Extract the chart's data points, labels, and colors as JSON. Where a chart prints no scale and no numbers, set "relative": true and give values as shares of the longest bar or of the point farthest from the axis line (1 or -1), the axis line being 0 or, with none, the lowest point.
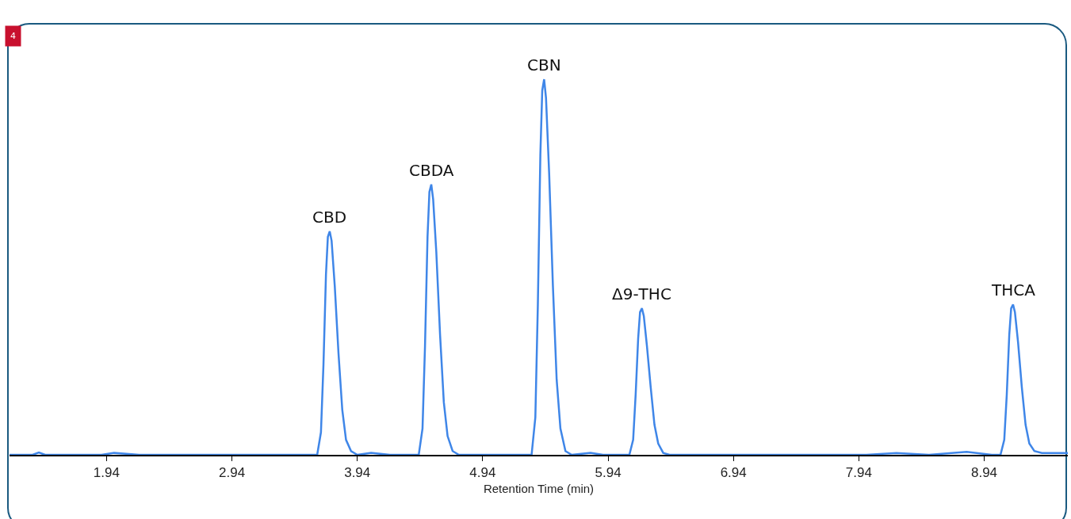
{
  "chart_data": {
    "type": "line",
    "xlabel": "Retention Time (min)",
    "relative": true,
    "xlim": [
      1.166,
      9.607
    ],
    "xticks": [
      1.94,
      2.94,
      3.94,
      4.94,
      5.94,
      6.94,
      7.94,
      8.94
    ],
    "x": [
      1.166,
      1.35,
      1.4,
      1.45,
      1.7,
      1.9,
      2.0,
      2.2,
      2.3,
      3.62,
      3.65,
      3.67,
      3.69,
      3.705,
      3.72,
      3.735,
      3.76,
      3.79,
      3.82,
      3.85,
      3.89,
      3.94,
      4.05,
      4.2,
      4.43,
      4.46,
      4.48,
      4.5,
      4.515,
      4.53,
      4.545,
      4.57,
      4.6,
      4.63,
      4.66,
      4.7,
      4.75,
      5.33,
      5.36,
      5.38,
      5.4,
      5.415,
      5.43,
      5.445,
      5.47,
      5.5,
      5.53,
      5.56,
      5.6,
      5.65,
      5.8,
      5.9,
      6.11,
      6.14,
      6.16,
      6.18,
      6.195,
      6.21,
      6.225,
      6.25,
      6.28,
      6.31,
      6.34,
      6.38,
      6.43,
      8.0,
      8.24,
      8.5,
      8.8,
      9.0,
      9.07,
      9.1,
      9.12,
      9.14,
      9.155,
      9.17,
      9.185,
      9.21,
      9.24,
      9.27,
      9.3,
      9.34,
      9.4,
      9.607
    ],
    "series": [
      {
        "color": "#3f86e8",
        "values": [
          0,
          0,
          0.006,
          0,
          0,
          0,
          0.005,
          0,
          0,
          0,
          0.06,
          0.24,
          0.48,
          0.58,
          0.595,
          0.57,
          0.45,
          0.27,
          0.12,
          0.04,
          0.01,
          0,
          0.005,
          0,
          0,
          0.07,
          0.29,
          0.58,
          0.7,
          0.72,
          0.68,
          0.54,
          0.32,
          0.14,
          0.05,
          0.01,
          0,
          0,
          0.1,
          0.4,
          0.8,
          0.97,
          1,
          0.95,
          0.75,
          0.45,
          0.2,
          0.07,
          0.01,
          0,
          0.005,
          0,
          0,
          0.04,
          0.16,
          0.31,
          0.38,
          0.39,
          0.37,
          0.29,
          0.18,
          0.08,
          0.03,
          0.005,
          0,
          0,
          0.005,
          0,
          0.008,
          0,
          0,
          0.04,
          0.16,
          0.32,
          0.39,
          0.4,
          0.38,
          0.3,
          0.18,
          0.08,
          0.03,
          0.01,
          0.005,
          0.005
        ]
      }
    ],
    "annotations": [
      "4",
      {
        "text": "CBD",
        "x": 3.72,
        "y": 0.595
      },
      {
        "text": "CBDA",
        "x": 4.53,
        "y": 0.72
      },
      {
        "text": "CBN",
        "x": 5.43,
        "y": 1
      },
      {
        "text": "Δ9-THC",
        "x": 6.21,
        "y": 0.39
      },
      {
        "text": "THCA",
        "x": 9.17,
        "y": 0.4
      }
    ]
  }
}
